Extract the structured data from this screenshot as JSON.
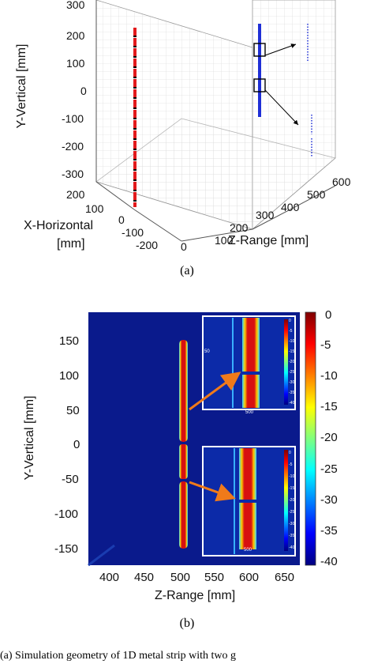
{
  "figure_a": {
    "y_axis_label": "Y-Vertical [mm]",
    "x_axis_label_line1": "X-Horizontal",
    "x_axis_label_line2": "[mm]",
    "z_axis_label": "Z-Range [mm]",
    "y_ticks": [
      "300",
      "200",
      "100",
      "0",
      "-100",
      "-200",
      "-300"
    ],
    "x_ticks": [
      "200",
      "100",
      "0",
      "-100",
      "-200"
    ],
    "z_ticks": [
      "0",
      "100",
      "200",
      "300",
      "400",
      "500",
      "600"
    ],
    "caption": "(a)",
    "colors": {
      "strip_dashed": "#e31a1c",
      "strip_solid": "#1f2fd6"
    }
  },
  "figure_b": {
    "y_axis_label": "Y-Vertical [mm]",
    "x_axis_label": "Z-Range [mm]",
    "y_ticks": [
      "150",
      "100",
      "50",
      "0",
      "-50",
      "-100",
      "-150"
    ],
    "x_ticks": [
      "400",
      "450",
      "500",
      "550",
      "600",
      "650"
    ],
    "colorbar_ticks": [
      "0",
      "-5",
      "-10",
      "-15",
      "-20",
      "-25",
      "-30",
      "-35",
      "-40"
    ],
    "inset_top_ticks": [
      "0",
      "-5",
      "-10",
      "-15",
      "-20",
      "-25",
      "-30",
      "-35",
      "-40"
    ],
    "inset_top_x_tick": "500",
    "inset_top_y_tick": "50",
    "inset_bottom_ticks": [
      "0",
      "-5",
      "-10",
      "-15",
      "-20",
      "-25",
      "-30",
      "-35",
      "-40"
    ],
    "inset_bottom_x_tick": "500",
    "caption": "(b)",
    "colors": {
      "background": "#0a1a8c",
      "strip": "#c81010",
      "arrow": "#f07a1a"
    }
  },
  "caption_text": "(a) Simulation geometry of 1D metal strip with two g"
}
